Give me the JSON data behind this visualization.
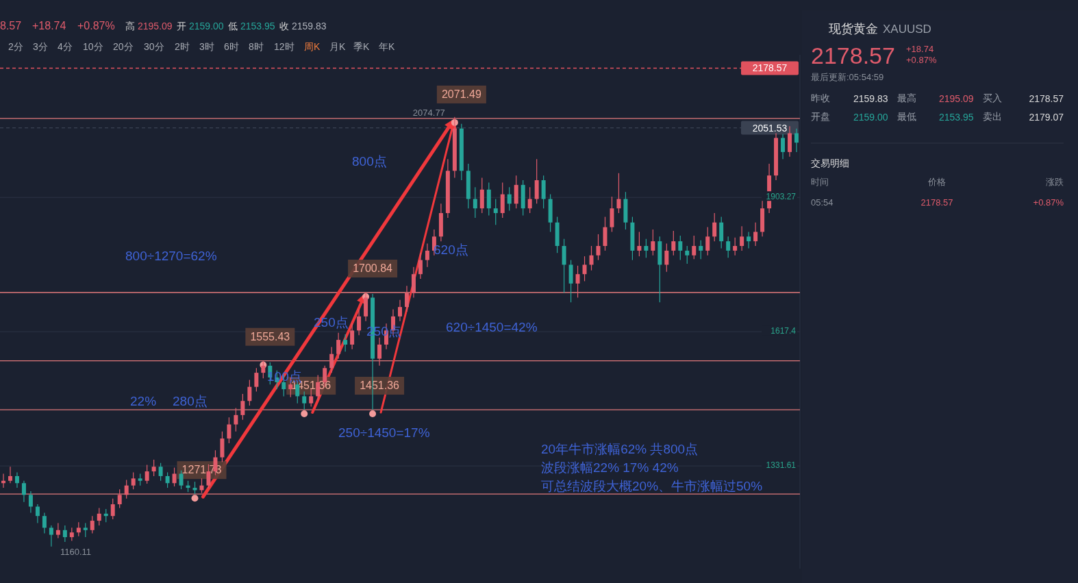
{
  "chart_data": [
    {
      "type": "candlestick",
      "categories": [
        null,
        null,
        null,
        null,
        null,
        null,
        null,
        null,
        null,
        null,
        null,
        null,
        null,
        null,
        null,
        null,
        null,
        null,
        null,
        null,
        null,
        null,
        null,
        null,
        null,
        null,
        null,
        null,
        null,
        null,
        null,
        null,
        null,
        null,
        null,
        null,
        null,
        null,
        null,
        null,
        null,
        null,
        null,
        null,
        null,
        null,
        null,
        null,
        null,
        null,
        null,
        null,
        null,
        null,
        null,
        null,
        null,
        null,
        null,
        null,
        null,
        null,
        null,
        null,
        null,
        null,
        null,
        null,
        null,
        null,
        null,
        null,
        null,
        null,
        null,
        null,
        null,
        null,
        null,
        null,
        null,
        null,
        null,
        null,
        null,
        null,
        null,
        null,
        null,
        null,
        null,
        null,
        null,
        null,
        null,
        null,
        null,
        null,
        null,
        null,
        null,
        null,
        null,
        null,
        null,
        null,
        null,
        null,
        null,
        null,
        null,
        null,
        null,
        null,
        null,
        null,
        null
      ],
      "ohlc": [
        [
          1295,
          1315,
          1285,
          1300
        ],
        [
          1300,
          1330,
          1295,
          1310
        ],
        [
          1310,
          1318,
          1285,
          1295
        ],
        [
          1295,
          1300,
          1255,
          1270
        ],
        [
          1270,
          1278,
          1232,
          1245
        ],
        [
          1245,
          1250,
          1210,
          1225
        ],
        [
          1225,
          1232,
          1188,
          1200
        ],
        [
          1200,
          1205,
          1160.11,
          1185
        ],
        [
          1185,
          1210,
          1178,
          1195
        ],
        [
          1195,
          1205,
          1170,
          1180
        ],
        [
          1180,
          1200,
          1172,
          1190
        ],
        [
          1190,
          1212,
          1182,
          1200
        ],
        [
          1200,
          1210,
          1180,
          1195
        ],
        [
          1195,
          1225,
          1188,
          1215
        ],
        [
          1215,
          1242,
          1205,
          1230
        ],
        [
          1230,
          1240,
          1212,
          1225
        ],
        [
          1225,
          1262,
          1218,
          1250
        ],
        [
          1250,
          1282,
          1242,
          1270
        ],
        [
          1270,
          1302,
          1262,
          1290
        ],
        [
          1290,
          1318,
          1282,
          1305
        ],
        [
          1305,
          1315,
          1290,
          1300
        ],
        [
          1300,
          1334,
          1294,
          1320
        ],
        [
          1320,
          1345,
          1310,
          1330
        ],
        [
          1330,
          1338,
          1300,
          1310
        ],
        [
          1310,
          1318,
          1285,
          1295
        ],
        [
          1295,
          1328,
          1288,
          1315
        ],
        [
          1315,
          1322,
          1282,
          1290
        ],
        [
          1290,
          1300,
          1276,
          1285
        ],
        [
          1285,
          1298,
          1271.73,
          1280
        ],
        [
          1280,
          1305,
          1274,
          1290
        ],
        [
          1290,
          1335,
          1284,
          1320
        ],
        [
          1320,
          1365,
          1312,
          1350
        ],
        [
          1350,
          1405,
          1340,
          1390
        ],
        [
          1390,
          1435,
          1380,
          1420
        ],
        [
          1420,
          1455,
          1405,
          1440
        ],
        [
          1440,
          1485,
          1430,
          1470
        ],
        [
          1470,
          1515,
          1460,
          1500
        ],
        [
          1500,
          1540,
          1490,
          1530
        ],
        [
          1530,
          1555.43,
          1518,
          1545
        ],
        [
          1545,
          1552,
          1505,
          1520
        ],
        [
          1520,
          1535,
          1495,
          1510
        ],
        [
          1510,
          1525,
          1480,
          1495
        ],
        [
          1495,
          1520,
          1478,
          1505
        ],
        [
          1505,
          1512,
          1465,
          1480
        ],
        [
          1480,
          1490,
          1451.36,
          1465
        ],
        [
          1465,
          1495,
          1458,
          1480
        ],
        [
          1480,
          1525,
          1472,
          1510
        ],
        [
          1510,
          1545,
          1500,
          1540
        ],
        [
          1540,
          1585,
          1530,
          1570
        ],
        [
          1570,
          1615,
          1560,
          1600
        ],
        [
          1600,
          1612,
          1575,
          1590
        ],
        [
          1590,
          1635,
          1580,
          1620
        ],
        [
          1620,
          1665,
          1610,
          1650
        ],
        [
          1650,
          1700.84,
          1640,
          1690
        ],
        [
          1690,
          1698,
          1451.36,
          1560
        ],
        [
          1560,
          1605,
          1545,
          1590
        ],
        [
          1590,
          1635,
          1580,
          1620
        ],
        [
          1620,
          1665,
          1610,
          1650
        ],
        [
          1650,
          1685,
          1640,
          1670
        ],
        [
          1670,
          1715,
          1660,
          1700
        ],
        [
          1700,
          1755,
          1690,
          1740
        ],
        [
          1740,
          1785,
          1730,
          1770
        ],
        [
          1770,
          1805,
          1755,
          1790
        ],
        [
          1790,
          1835,
          1780,
          1820
        ],
        [
          1820,
          1890,
          1810,
          1870
        ],
        [
          1870,
          1985,
          1860,
          1960
        ],
        [
          1960,
          2074.77,
          1945,
          2050
        ],
        [
          2050,
          2060,
          1940,
          1960
        ],
        [
          1960,
          1975,
          1880,
          1900
        ],
        [
          1900,
          1925,
          1860,
          1880
        ],
        [
          1880,
          1945,
          1870,
          1920
        ],
        [
          1920,
          1935,
          1865,
          1880
        ],
        [
          1880,
          1900,
          1845,
          1870
        ],
        [
          1870,
          1935,
          1860,
          1910
        ],
        [
          1910,
          1925,
          1875,
          1890
        ],
        [
          1890,
          1950,
          1880,
          1930
        ],
        [
          1930,
          1940,
          1865,
          1880
        ],
        [
          1880,
          1925,
          1870,
          1900
        ],
        [
          1900,
          1985,
          1890,
          1940
        ],
        [
          1940,
          1950,
          1880,
          1900
        ],
        [
          1900,
          1910,
          1830,
          1850
        ],
        [
          1850,
          1862,
          1785,
          1800
        ],
        [
          1800,
          1815,
          1700,
          1760
        ],
        [
          1760,
          1770,
          1680,
          1720
        ],
        [
          1720,
          1758,
          1690,
          1740
        ],
        [
          1740,
          1778,
          1725,
          1760
        ],
        [
          1760,
          1800,
          1748,
          1780
        ],
        [
          1780,
          1825,
          1770,
          1800
        ],
        [
          1800,
          1862,
          1790,
          1840
        ],
        [
          1840,
          1905,
          1830,
          1880
        ],
        [
          1880,
          1955,
          1870,
          1900
        ],
        [
          1900,
          1915,
          1835,
          1850
        ],
        [
          1850,
          1862,
          1770,
          1790
        ],
        [
          1790,
          1830,
          1778,
          1800
        ],
        [
          1800,
          1815,
          1775,
          1790
        ],
        [
          1790,
          1835,
          1780,
          1810
        ],
        [
          1810,
          1820,
          1680,
          1760
        ],
        [
          1760,
          1805,
          1745,
          1790
        ],
        [
          1790,
          1832,
          1780,
          1810
        ],
        [
          1810,
          1822,
          1770,
          1790
        ],
        [
          1790,
          1800,
          1762,
          1780
        ],
        [
          1780,
          1822,
          1772,
          1800
        ],
        [
          1800,
          1812,
          1772,
          1790
        ],
        [
          1790,
          1840,
          1780,
          1820
        ],
        [
          1820,
          1870,
          1810,
          1850
        ],
        [
          1850,
          1862,
          1795,
          1810
        ],
        [
          1810,
          1820,
          1775,
          1790
        ],
        [
          1790,
          1818,
          1780,
          1800
        ],
        [
          1800,
          1842,
          1790,
          1820
        ],
        [
          1820,
          1830,
          1795,
          1810
        ],
        [
          1810,
          1850,
          1800,
          1830
        ],
        [
          1830,
          1900,
          1820,
          1880
        ],
        [
          1880,
          1975,
          1870,
          1950
        ],
        [
          1950,
          2040,
          1940,
          2030
        ],
        [
          2030,
          2038,
          1985,
          2000
        ],
        [
          2000,
          2055,
          1990,
          2040
        ],
        [
          2040,
          2050,
          2000,
          2020
        ]
      ],
      "ylim": [
        1113,
        2207
      ],
      "yticks": [
        1331.61,
        1617.4,
        1903.27
      ],
      "grid": "y",
      "ref_lines": [
        {
          "axis": "y",
          "value": 2071.49,
          "color": "#e0787a"
        },
        {
          "axis": "y",
          "value": 1700.84,
          "color": "#e0787a"
        },
        {
          "axis": "y",
          "value": 1555.43,
          "color": "#e0787a"
        },
        {
          "axis": "y",
          "value": 1451.36,
          "color": "#e0787a"
        },
        {
          "axis": "y",
          "value": 1271.73,
          "color": "#e0787a"
        },
        {
          "axis": "y",
          "value": 2178.57,
          "label": "2178.57",
          "color": "#e0525e",
          "line_style": "dashed"
        },
        {
          "axis": "y",
          "value": 2051.53,
          "label": "2051.53",
          "color": "#3a4252",
          "line_style": "dashed"
        }
      ],
      "annotations": [
        {
          "text": "2071.49",
          "y": 2071.49
        },
        {
          "text": "2074.77",
          "y": 2074.77
        },
        {
          "text": "1700.84",
          "y": 1700.84
        },
        {
          "text": "1555.43",
          "y": 1555.43
        },
        {
          "text": "1451.36",
          "y": 1451.36
        },
        {
          "text": "1451.36",
          "y": 1451.36
        },
        {
          "text": "1271.73",
          "y": 1271.73
        },
        "800点",
        "800÷1270=62%",
        "620点",
        "250点",
        "250点",
        "620÷1450=42%",
        "100点",
        "22%",
        "280点",
        "250÷1450=17%",
        "20年牛市涨幅62% 共800点",
        "波段涨幅22% 17% 42%",
        "可总结波段大概20%、牛市涨幅过50%",
        "8.57",
        "+18.74",
        "+0.87%",
        "高",
        "2195.09",
        "开",
        "2159.00",
        "低",
        "2153.95",
        "收",
        "2159.83",
        "2分",
        "3分",
        "4分",
        "10分",
        "20分",
        "30分",
        "2时",
        "3时",
        "6时",
        "8时",
        "12时",
        "周K",
        "月K",
        "季K",
        "年K",
        "1160.11"
      ]
    },
    {
      "type": "other",
      "annotations": [
        "现货黄金",
        "XAUUSD",
        "2178.57",
        "+18.74",
        "+0.87%",
        "最后更新:05:54:59",
        "昨收",
        "2159.83",
        "最高",
        "2195.09",
        "买入",
        "2178.57",
        "开盘",
        "2159.00",
        "最低",
        "2153.95",
        "卖出",
        "2179.07",
        "交易明细",
        "时间",
        "价格",
        "涨跌",
        "05:54",
        "2178.57",
        "+0.87%"
      ]
    }
  ]
}
